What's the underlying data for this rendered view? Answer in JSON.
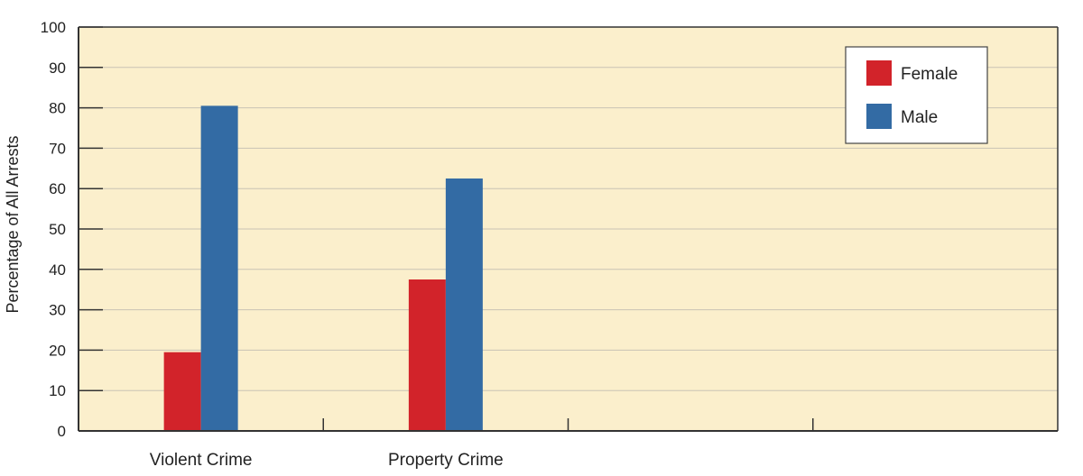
{
  "chart_data": {
    "type": "bar",
    "title": "",
    "xlabel": "",
    "ylabel": "Percentage of All Arrests",
    "ylim": [
      0,
      100
    ],
    "yticks": [
      0,
      10,
      20,
      30,
      40,
      50,
      60,
      70,
      80,
      90,
      100
    ],
    "categories": [
      "Violent Crime",
      "Property Crime",
      "",
      ""
    ],
    "series": [
      {
        "name": "Female",
        "color": "#d2232a",
        "values": [
          19.5,
          37.5,
          null,
          null
        ]
      },
      {
        "name": "Male",
        "color": "#336ba4",
        "values": [
          80.5,
          62.5,
          null,
          null
        ]
      }
    ],
    "grid": true,
    "legend_position": "top-right",
    "colors": {
      "plot_background": "#fbefcc",
      "gridline": "#c9c3b4",
      "axis": "#333333"
    }
  }
}
